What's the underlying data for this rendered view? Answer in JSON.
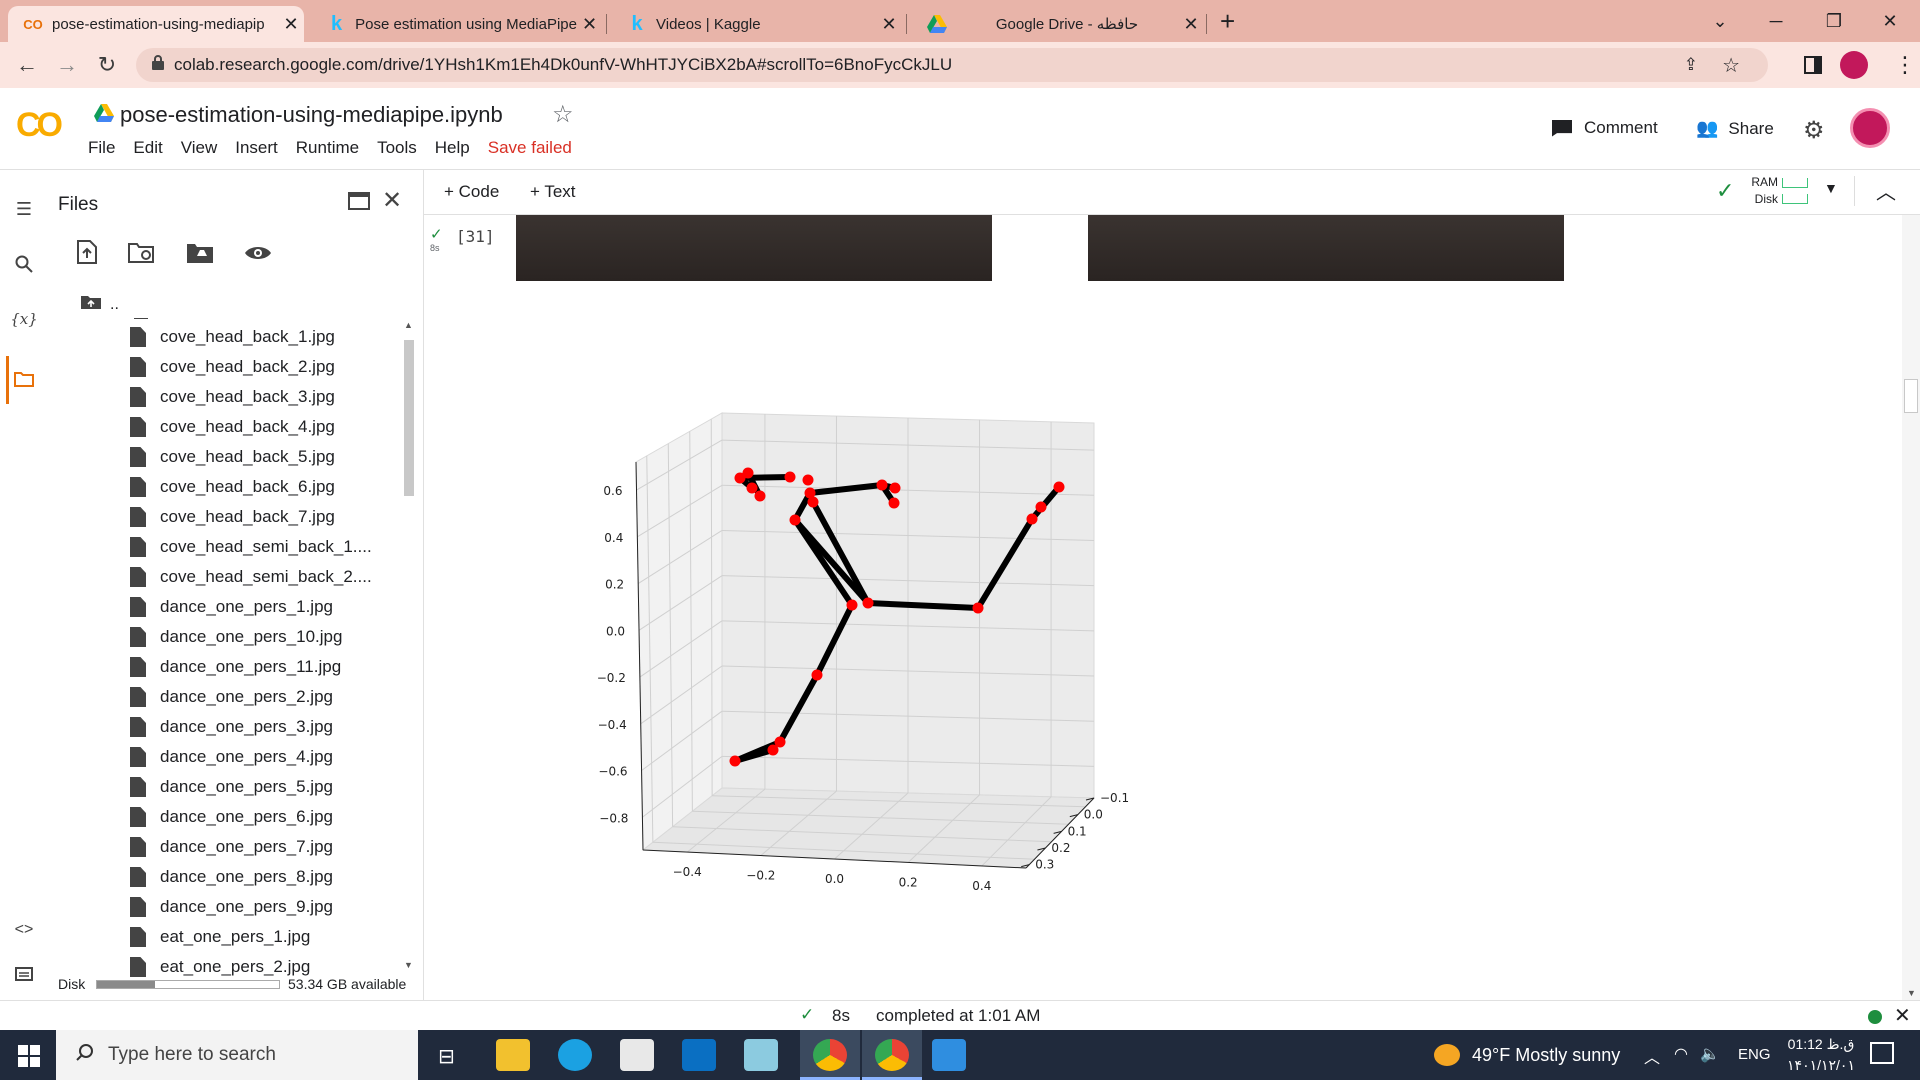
{
  "browser": {
    "tabs": [
      {
        "title": "pose-estimation-using-mediapip",
        "icon": "colab-icon"
      },
      {
        "title": "Pose estimation using MediaPipe",
        "icon": "kaggle-icon"
      },
      {
        "title": "Videos | Kaggle",
        "icon": "kaggle-icon"
      },
      {
        "title": "Google Drive - حافظه",
        "icon": "drive-icon"
      }
    ],
    "url": "colab.research.google.com/drive/1YHsh1Km1Eh4Dk0unfV-WhHTJYCiBX2bA#scrollTo=6BnoFycCkJLU"
  },
  "colab": {
    "logo": "CO",
    "notebook_title": "pose-estimation-using-mediapipe.ipynb",
    "menu": [
      "File",
      "Edit",
      "View",
      "Insert",
      "Runtime",
      "Tools",
      "Help"
    ],
    "save_status": "Save failed",
    "comment_label": "Comment",
    "share_label": "Share"
  },
  "files_panel": {
    "title": "Files",
    "parent_dir": "..",
    "files": [
      "cove_head_back_1.jpg",
      "cove_head_back_2.jpg",
      "cove_head_back_3.jpg",
      "cove_head_back_4.jpg",
      "cove_head_back_5.jpg",
      "cove_head_back_6.jpg",
      "cove_head_back_7.jpg",
      "cove_head_semi_back_1....",
      "cove_head_semi_back_2....",
      "dance_one_pers_1.jpg",
      "dance_one_pers_10.jpg",
      "dance_one_pers_11.jpg",
      "dance_one_pers_2.jpg",
      "dance_one_pers_3.jpg",
      "dance_one_pers_4.jpg",
      "dance_one_pers_5.jpg",
      "dance_one_pers_6.jpg",
      "dance_one_pers_7.jpg",
      "dance_one_pers_8.jpg",
      "dance_one_pers_9.jpg",
      "eat_one_pers_1.jpg",
      "eat_one_pers_2.jpg"
    ],
    "disk_label": "Disk",
    "disk_available": "53.34 GB available",
    "disk_used_fraction": 0.32
  },
  "notebook_toolbar": {
    "code_label": "+ Code",
    "text_label": "+ Text",
    "ram_label": "RAM",
    "disk_label": "Disk"
  },
  "cell": {
    "exec_count": "[31]",
    "exec_time": "8s"
  },
  "chart_data": {
    "type": "scatter",
    "title": "",
    "z_ticks": [
      "0.6",
      "0.4",
      "0.2",
      "0.0",
      "−0.2",
      "−0.4",
      "−0.6",
      "−0.8"
    ],
    "x_ticks": [
      "−0.4",
      "−0.2",
      "0.0",
      "0.2",
      "0.4"
    ],
    "y_ticks": [
      "−0.1",
      "0.0",
      "0.1",
      "0.2",
      "0.3"
    ],
    "z_range": [
      -0.85,
      0.7
    ],
    "x_range": [
      -0.5,
      0.5
    ],
    "y_range": [
      -0.15,
      0.35
    ],
    "grid": true,
    "point_color": "#ff0000",
    "line_color": "#000000"
  },
  "status_bar": {
    "time": "8s",
    "message": "completed at 1:01 AM"
  },
  "taskbar": {
    "search_placeholder": "Type here to search",
    "weather": "49°F  Mostly sunny",
    "language": "ENG",
    "clock_time": "01:12 ق.ظ",
    "clock_date": "۱۴۰۱/۱۲/۰۱"
  }
}
